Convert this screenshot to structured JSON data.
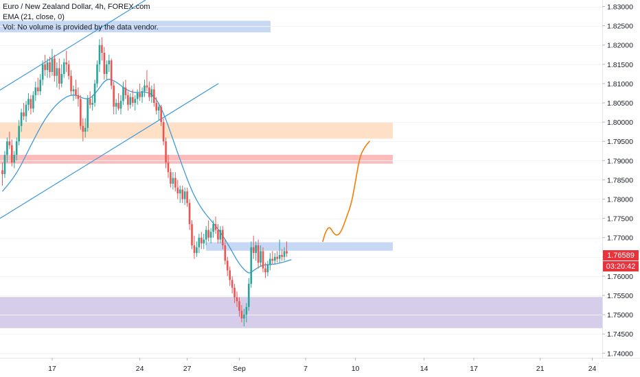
{
  "legend": {
    "title": "Euro / New Zealand Dollar, 4h, FOREX.com",
    "ema": "EMA (21, close, 0)",
    "vol": "Vol: No volume is provided by the data vendor."
  },
  "price_badge": {
    "value": "1.76589",
    "color": "#e8323c"
  },
  "countdown_badge": {
    "value": "03:20:42",
    "color": "#e8323c"
  },
  "colors": {
    "up": "#26a69a",
    "down": "#ef5350",
    "ema": "#3b9ad9",
    "channel": "#3b9ad9",
    "projection": "#f57c00",
    "zone_blue": "#c7d8f5",
    "zone_orange": "#fde0c5",
    "zone_red": "#fdbcbc",
    "zone_purple": "#d6cdea"
  },
  "chart_data": {
    "type": "candlestick",
    "symbol": "Euro / New Zealand Dollar, 4h, FOREX.com",
    "yticks": [
      "1.74000",
      "1.74500",
      "1.75000",
      "1.75500",
      "1.76000",
      "1.76500",
      "1.77000",
      "1.77500",
      "1.78000",
      "1.78500",
      "1.79000",
      "1.79500",
      "1.80000",
      "1.80500",
      "1.81000",
      "1.81500",
      "1.82000",
      "1.82500",
      "1.83000"
    ],
    "ylim": [
      1.7388,
      1.8317
    ],
    "xticks": [
      {
        "label": "17",
        "bar": 21
      },
      {
        "label": "24",
        "bar": 58
      },
      {
        "label": "27",
        "bar": 78
      },
      {
        "label": "Sep",
        "bar": 100
      },
      {
        "label": "7",
        "bar": 128
      },
      {
        "label": "10",
        "bar": 149
      },
      {
        "label": "14",
        "bar": 178
      },
      {
        "label": "17",
        "bar": 199
      },
      {
        "label": "21",
        "bar": 227
      },
      {
        "label": "24",
        "bar": 249
      }
    ],
    "candles": [
      {
        "o": 1.7875,
        "h": 1.7895,
        "l": 1.7835,
        "c": 1.7865
      },
      {
        "o": 1.7865,
        "h": 1.7925,
        "l": 1.7855,
        "c": 1.7915
      },
      {
        "o": 1.7915,
        "h": 1.796,
        "l": 1.7895,
        "c": 1.795
      },
      {
        "o": 1.795,
        "h": 1.7975,
        "l": 1.793,
        "c": 1.794
      },
      {
        "o": 1.794,
        "h": 1.7955,
        "l": 1.7885,
        "c": 1.7895
      },
      {
        "o": 1.7895,
        "h": 1.7925,
        "l": 1.788,
        "c": 1.7915
      },
      {
        "o": 1.7915,
        "h": 1.796,
        "l": 1.79,
        "c": 1.795
      },
      {
        "o": 1.795,
        "h": 1.8005,
        "l": 1.794,
        "c": 1.799
      },
      {
        "o": 1.799,
        "h": 1.8035,
        "l": 1.7975,
        "c": 1.8025
      },
      {
        "o": 1.8025,
        "h": 1.805,
        "l": 1.8005,
        "c": 1.8015
      },
      {
        "o": 1.8015,
        "h": 1.8055,
        "l": 1.8,
        "c": 1.8045
      },
      {
        "o": 1.8045,
        "h": 1.8075,
        "l": 1.803,
        "c": 1.806
      },
      {
        "o": 1.806,
        "h": 1.807,
        "l": 1.802,
        "c": 1.8035
      },
      {
        "o": 1.8035,
        "h": 1.808,
        "l": 1.8025,
        "c": 1.807
      },
      {
        "o": 1.807,
        "h": 1.8105,
        "l": 1.8055,
        "c": 1.809
      },
      {
        "o": 1.809,
        "h": 1.8115,
        "l": 1.807,
        "c": 1.808
      },
      {
        "o": 1.808,
        "h": 1.8125,
        "l": 1.807,
        "c": 1.811
      },
      {
        "o": 1.811,
        "h": 1.816,
        "l": 1.8095,
        "c": 1.815
      },
      {
        "o": 1.815,
        "h": 1.8175,
        "l": 1.812,
        "c": 1.8135
      },
      {
        "o": 1.8135,
        "h": 1.8165,
        "l": 1.8115,
        "c": 1.8155
      },
      {
        "o": 1.8155,
        "h": 1.817,
        "l": 1.8115,
        "c": 1.813
      },
      {
        "o": 1.813,
        "h": 1.819,
        "l": 1.812,
        "c": 1.8165
      },
      {
        "o": 1.8165,
        "h": 1.8175,
        "l": 1.8105,
        "c": 1.812
      },
      {
        "o": 1.812,
        "h": 1.8155,
        "l": 1.809,
        "c": 1.814
      },
      {
        "o": 1.814,
        "h": 1.8165,
        "l": 1.8085,
        "c": 1.81
      },
      {
        "o": 1.81,
        "h": 1.815,
        "l": 1.809,
        "c": 1.8125
      },
      {
        "o": 1.8125,
        "h": 1.8165,
        "l": 1.8115,
        "c": 1.8155
      },
      {
        "o": 1.8155,
        "h": 1.8185,
        "l": 1.813,
        "c": 1.815
      },
      {
        "o": 1.815,
        "h": 1.816,
        "l": 1.811,
        "c": 1.812
      },
      {
        "o": 1.812,
        "h": 1.8135,
        "l": 1.807,
        "c": 1.808
      },
      {
        "o": 1.808,
        "h": 1.8095,
        "l": 1.8055,
        "c": 1.8085
      },
      {
        "o": 1.8085,
        "h": 1.811,
        "l": 1.806,
        "c": 1.807
      },
      {
        "o": 1.807,
        "h": 1.809,
        "l": 1.804,
        "c": 1.806
      },
      {
        "o": 1.806,
        "h": 1.807,
        "l": 1.798,
        "c": 1.799
      },
      {
        "o": 1.799,
        "h": 1.801,
        "l": 1.795,
        "c": 1.7975
      },
      {
        "o": 1.7975,
        "h": 1.801,
        "l": 1.796,
        "c": 1.7985
      },
      {
        "o": 1.7985,
        "h": 1.807,
        "l": 1.7975,
        "c": 1.806
      },
      {
        "o": 1.806,
        "h": 1.808,
        "l": 1.8035,
        "c": 1.8045
      },
      {
        "o": 1.8045,
        "h": 1.807,
        "l": 1.803,
        "c": 1.805
      },
      {
        "o": 1.805,
        "h": 1.811,
        "l": 1.804,
        "c": 1.81
      },
      {
        "o": 1.81,
        "h": 1.816,
        "l": 1.809,
        "c": 1.815
      },
      {
        "o": 1.815,
        "h": 1.8215,
        "l": 1.813,
        "c": 1.82
      },
      {
        "o": 1.82,
        "h": 1.822,
        "l": 1.816,
        "c": 1.818
      },
      {
        "o": 1.818,
        "h": 1.8195,
        "l": 1.811,
        "c": 1.8125
      },
      {
        "o": 1.8125,
        "h": 1.816,
        "l": 1.811,
        "c": 1.815
      },
      {
        "o": 1.815,
        "h": 1.8175,
        "l": 1.813,
        "c": 1.816
      },
      {
        "o": 1.816,
        "h": 1.8165,
        "l": 1.8085,
        "c": 1.8095
      },
      {
        "o": 1.8095,
        "h": 1.8105,
        "l": 1.802,
        "c": 1.804
      },
      {
        "o": 1.804,
        "h": 1.806,
        "l": 1.802,
        "c": 1.805
      },
      {
        "o": 1.805,
        "h": 1.8075,
        "l": 1.803,
        "c": 1.8035
      },
      {
        "o": 1.8035,
        "h": 1.807,
        "l": 1.802,
        "c": 1.8055
      },
      {
        "o": 1.8055,
        "h": 1.8105,
        "l": 1.8045,
        "c": 1.809
      },
      {
        "o": 1.809,
        "h": 1.811,
        "l": 1.806,
        "c": 1.807
      },
      {
        "o": 1.807,
        "h": 1.808,
        "l": 1.803,
        "c": 1.8045
      },
      {
        "o": 1.8045,
        "h": 1.8075,
        "l": 1.8035,
        "c": 1.8065
      },
      {
        "o": 1.8065,
        "h": 1.8085,
        "l": 1.804,
        "c": 1.805
      },
      {
        "o": 1.805,
        "h": 1.807,
        "l": 1.803,
        "c": 1.806
      },
      {
        "o": 1.806,
        "h": 1.8085,
        "l": 1.8045,
        "c": 1.8075
      },
      {
        "o": 1.8075,
        "h": 1.81,
        "l": 1.8055,
        "c": 1.8065
      },
      {
        "o": 1.8065,
        "h": 1.809,
        "l": 1.805,
        "c": 1.808
      },
      {
        "o": 1.808,
        "h": 1.811,
        "l": 1.8065,
        "c": 1.8095
      },
      {
        "o": 1.8095,
        "h": 1.8135,
        "l": 1.808,
        "c": 1.809
      },
      {
        "o": 1.809,
        "h": 1.8105,
        "l": 1.8055,
        "c": 1.8065
      },
      {
        "o": 1.8065,
        "h": 1.8095,
        "l": 1.805,
        "c": 1.8085
      },
      {
        "o": 1.8085,
        "h": 1.81,
        "l": 1.804,
        "c": 1.805
      },
      {
        "o": 1.805,
        "h": 1.8065,
        "l": 1.802,
        "c": 1.803
      },
      {
        "o": 1.803,
        "h": 1.805,
        "l": 1.8005,
        "c": 1.804
      },
      {
        "o": 1.804,
        "h": 1.8045,
        "l": 1.799,
        "c": 1.8
      },
      {
        "o": 1.8,
        "h": 1.801,
        "l": 1.794,
        "c": 1.795
      },
      {
        "o": 1.795,
        "h": 1.796,
        "l": 1.788,
        "c": 1.7895
      },
      {
        "o": 1.7895,
        "h": 1.7915,
        "l": 1.7855,
        "c": 1.787
      },
      {
        "o": 1.787,
        "h": 1.788,
        "l": 1.783,
        "c": 1.784
      },
      {
        "o": 1.784,
        "h": 1.787,
        "l": 1.7825,
        "c": 1.7855
      },
      {
        "o": 1.7855,
        "h": 1.787,
        "l": 1.782,
        "c": 1.783
      },
      {
        "o": 1.783,
        "h": 1.785,
        "l": 1.78,
        "c": 1.7815
      },
      {
        "o": 1.7815,
        "h": 1.7835,
        "l": 1.779,
        "c": 1.7825
      },
      {
        "o": 1.7825,
        "h": 1.7835,
        "l": 1.779,
        "c": 1.78
      },
      {
        "o": 1.78,
        "h": 1.783,
        "l": 1.7785,
        "c": 1.782
      },
      {
        "o": 1.782,
        "h": 1.783,
        "l": 1.778,
        "c": 1.779
      },
      {
        "o": 1.779,
        "h": 1.78,
        "l": 1.772,
        "c": 1.7735
      },
      {
        "o": 1.7735,
        "h": 1.7745,
        "l": 1.767,
        "c": 1.768
      },
      {
        "o": 1.768,
        "h": 1.7705,
        "l": 1.7645,
        "c": 1.766
      },
      {
        "o": 1.766,
        "h": 1.769,
        "l": 1.765,
        "c": 1.7675
      },
      {
        "o": 1.7675,
        "h": 1.771,
        "l": 1.766,
        "c": 1.77
      },
      {
        "o": 1.77,
        "h": 1.7715,
        "l": 1.767,
        "c": 1.7685
      },
      {
        "o": 1.7685,
        "h": 1.771,
        "l": 1.767,
        "c": 1.7695
      },
      {
        "o": 1.7695,
        "h": 1.773,
        "l": 1.768,
        "c": 1.772
      },
      {
        "o": 1.772,
        "h": 1.7745,
        "l": 1.769,
        "c": 1.77
      },
      {
        "o": 1.77,
        "h": 1.7725,
        "l": 1.7685,
        "c": 1.7715
      },
      {
        "o": 1.7715,
        "h": 1.7745,
        "l": 1.77,
        "c": 1.7735
      },
      {
        "o": 1.7735,
        "h": 1.7755,
        "l": 1.771,
        "c": 1.772
      },
      {
        "o": 1.772,
        "h": 1.7735,
        "l": 1.7685,
        "c": 1.7695
      },
      {
        "o": 1.7695,
        "h": 1.773,
        "l": 1.7685,
        "c": 1.772
      },
      {
        "o": 1.772,
        "h": 1.773,
        "l": 1.767,
        "c": 1.768
      },
      {
        "o": 1.768,
        "h": 1.7695,
        "l": 1.763,
        "c": 1.764
      },
      {
        "o": 1.764,
        "h": 1.765,
        "l": 1.76,
        "c": 1.7615
      },
      {
        "o": 1.7615,
        "h": 1.7625,
        "l": 1.7575,
        "c": 1.759
      },
      {
        "o": 1.759,
        "h": 1.76,
        "l": 1.7555,
        "c": 1.757
      },
      {
        "o": 1.757,
        "h": 1.758,
        "l": 1.753,
        "c": 1.7545
      },
      {
        "o": 1.7545,
        "h": 1.756,
        "l": 1.752,
        "c": 1.7535
      },
      {
        "o": 1.7535,
        "h": 1.7545,
        "l": 1.7495,
        "c": 1.751
      },
      {
        "o": 1.751,
        "h": 1.7525,
        "l": 1.748,
        "c": 1.749
      },
      {
        "o": 1.749,
        "h": 1.7515,
        "l": 1.747,
        "c": 1.75
      },
      {
        "o": 1.75,
        "h": 1.753,
        "l": 1.748,
        "c": 1.752
      },
      {
        "o": 1.752,
        "h": 1.7595,
        "l": 1.751,
        "c": 1.758
      },
      {
        "o": 1.758,
        "h": 1.769,
        "l": 1.757,
        "c": 1.7675
      },
      {
        "o": 1.7675,
        "h": 1.7705,
        "l": 1.7645,
        "c": 1.766
      },
      {
        "o": 1.766,
        "h": 1.769,
        "l": 1.764,
        "c": 1.768
      },
      {
        "o": 1.768,
        "h": 1.7695,
        "l": 1.762,
        "c": 1.7635
      },
      {
        "o": 1.7635,
        "h": 1.768,
        "l": 1.7625,
        "c": 1.7665
      },
      {
        "o": 1.7665,
        "h": 1.7675,
        "l": 1.761,
        "c": 1.762
      },
      {
        "o": 1.762,
        "h": 1.7635,
        "l": 1.7595,
        "c": 1.761
      },
      {
        "o": 1.761,
        "h": 1.764,
        "l": 1.76,
        "c": 1.763
      },
      {
        "o": 1.763,
        "h": 1.766,
        "l": 1.7615,
        "c": 1.7645
      },
      {
        "o": 1.7645,
        "h": 1.7665,
        "l": 1.763,
        "c": 1.764
      },
      {
        "o": 1.764,
        "h": 1.766,
        "l": 1.763,
        "c": 1.765
      },
      {
        "o": 1.765,
        "h": 1.7665,
        "l": 1.7635,
        "c": 1.7645
      },
      {
        "o": 1.7645,
        "h": 1.7695,
        "l": 1.7635,
        "c": 1.7655
      },
      {
        "o": 1.7655,
        "h": 1.767,
        "l": 1.764,
        "c": 1.765
      },
      {
        "o": 1.765,
        "h": 1.7675,
        "l": 1.764,
        "c": 1.7665
      },
      {
        "o": 1.7665,
        "h": 1.769,
        "l": 1.765,
        "c": 1.7659
      }
    ],
    "ema": [
      {
        "bar": 0,
        "v": 1.782
      },
      {
        "bar": 6,
        "v": 1.7865
      },
      {
        "bar": 12,
        "v": 1.794
      },
      {
        "bar": 18,
        "v": 1.801
      },
      {
        "bar": 24,
        "v": 1.8055
      },
      {
        "bar": 30,
        "v": 1.8075
      },
      {
        "bar": 36,
        "v": 1.8055
      },
      {
        "bar": 40,
        "v": 1.808
      },
      {
        "bar": 44,
        "v": 1.8115
      },
      {
        "bar": 48,
        "v": 1.8105
      },
      {
        "bar": 52,
        "v": 1.8085
      },
      {
        "bar": 56,
        "v": 1.8075
      },
      {
        "bar": 60,
        "v": 1.808
      },
      {
        "bar": 64,
        "v": 1.807
      },
      {
        "bar": 68,
        "v": 1.8025
      },
      {
        "bar": 72,
        "v": 1.7955
      },
      {
        "bar": 76,
        "v": 1.7885
      },
      {
        "bar": 80,
        "v": 1.782
      },
      {
        "bar": 84,
        "v": 1.7775
      },
      {
        "bar": 88,
        "v": 1.7745
      },
      {
        "bar": 92,
        "v": 1.7715
      },
      {
        "bar": 96,
        "v": 1.7675
      },
      {
        "bar": 100,
        "v": 1.763
      },
      {
        "bar": 104,
        "v": 1.7605
      },
      {
        "bar": 106,
        "v": 1.7615
      },
      {
        "bar": 110,
        "v": 1.763
      },
      {
        "bar": 114,
        "v": 1.763
      },
      {
        "bar": 118,
        "v": 1.7635
      },
      {
        "bar": 122,
        "v": 1.7643
      }
    ],
    "zones": [
      {
        "name": "blue-top-zone",
        "x0": 0,
        "x1": 394,
        "y0": 1.8263,
        "y1": 1.8233,
        "color": "zone_blue"
      },
      {
        "name": "orange-zone",
        "x0": 0,
        "x1": 572,
        "y0": 1.8,
        "y1": 1.7957,
        "color": "zone_orange"
      },
      {
        "name": "red-zone",
        "x0": 0,
        "x1": 572,
        "y0": 1.7915,
        "y1": 1.7892,
        "color": "zone_red"
      },
      {
        "name": "blue-resistance-zone",
        "x0": 300,
        "x1": 572,
        "y0": 1.7688,
        "y1": 1.7666,
        "color": "zone_blue"
      },
      {
        "name": "purple-demand-zone",
        "x0": 0,
        "x1": 877,
        "y0": 1.7546,
        "y1": 1.7465,
        "color": "zone_purple"
      }
    ],
    "channel_lines": [
      {
        "x0": 0,
        "y0": 1.8083,
        "x1": 212,
        "y1": 1.8317
      },
      {
        "x0": 0,
        "y0": 1.775,
        "x1": 318,
        "y1": 1.81
      }
    ],
    "projection": [
      {
        "x": 470,
        "v": 1.769
      },
      {
        "x": 474,
        "v": 1.7715
      },
      {
        "x": 480,
        "v": 1.773
      },
      {
        "x": 486,
        "v": 1.771
      },
      {
        "x": 492,
        "v": 1.7705
      },
      {
        "x": 498,
        "v": 1.772
      },
      {
        "x": 505,
        "v": 1.7755
      },
      {
        "x": 512,
        "v": 1.779
      },
      {
        "x": 518,
        "v": 1.785
      },
      {
        "x": 524,
        "v": 1.791
      },
      {
        "x": 531,
        "v": 1.7935
      },
      {
        "x": 538,
        "v": 1.795
      }
    ]
  }
}
